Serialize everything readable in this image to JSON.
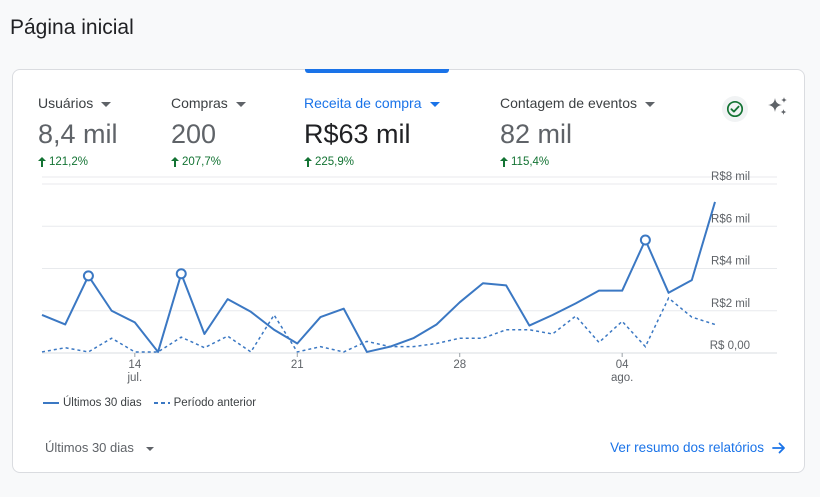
{
  "page": {
    "title": "Página inicial"
  },
  "metrics": [
    {
      "label": "Usuários",
      "value": "8,4 mil",
      "delta": "121,2%",
      "active": false
    },
    {
      "label": "Compras",
      "value": "200",
      "delta": "207,7%",
      "active": false
    },
    {
      "label": "Receita de compra",
      "value": "R$63 mil",
      "delta": "225,9%",
      "active": true
    },
    {
      "label": "Contagem de eventos",
      "value": "82 mil",
      "delta": "115,4%",
      "active": false
    }
  ],
  "icons": {
    "status": "check-circle-icon",
    "insights": "sparkle-icon"
  },
  "colors": {
    "accent": "#1a73e8",
    "series": "#3b78c3",
    "positive": "#137333",
    "grid": "#e8eaed"
  },
  "chart_data": {
    "type": "line",
    "y_ticks": [
      "R$ 0,00",
      "R$2 mil",
      "R$4 mil",
      "R$6 mil",
      "R$8 mil"
    ],
    "ylim": [
      0,
      8
    ],
    "y_unit": "mil R$",
    "x_ticks": [
      {
        "index": 4,
        "day": "14",
        "month": "jul."
      },
      {
        "index": 11,
        "day": "21",
        "month": ""
      },
      {
        "index": 18,
        "day": "28",
        "month": ""
      },
      {
        "index": 25,
        "day": "04",
        "month": "ago."
      }
    ],
    "legend_position": "bottom-left",
    "grid": true,
    "series": [
      {
        "name": "Últimos 30 dias",
        "style": "solid",
        "values": [
          1.8,
          1.35,
          3.65,
          2.0,
          1.45,
          0.05,
          3.75,
          0.9,
          2.55,
          1.95,
          1.1,
          0.45,
          1.7,
          2.1,
          0.05,
          0.3,
          0.7,
          1.35,
          2.4,
          3.3,
          3.2,
          1.3,
          1.8,
          2.35,
          2.95,
          2.95,
          5.35,
          2.85,
          3.45,
          7.15
        ],
        "markers": [
          2,
          6,
          26
        ]
      },
      {
        "name": "Período anterior",
        "style": "dashed",
        "values": [
          0.05,
          0.25,
          0.05,
          0.7,
          0.05,
          0.05,
          0.75,
          0.25,
          0.8,
          0.05,
          1.8,
          0.05,
          0.3,
          0.05,
          0.55,
          0.3,
          0.3,
          0.45,
          0.7,
          0.7,
          1.1,
          1.1,
          0.9,
          1.75,
          0.5,
          1.5,
          0.3,
          2.6,
          1.7,
          1.35
        ]
      }
    ]
  },
  "footer": {
    "range_label": "Últimos 30 dias",
    "summary_link": "Ver resumo dos relatórios"
  }
}
